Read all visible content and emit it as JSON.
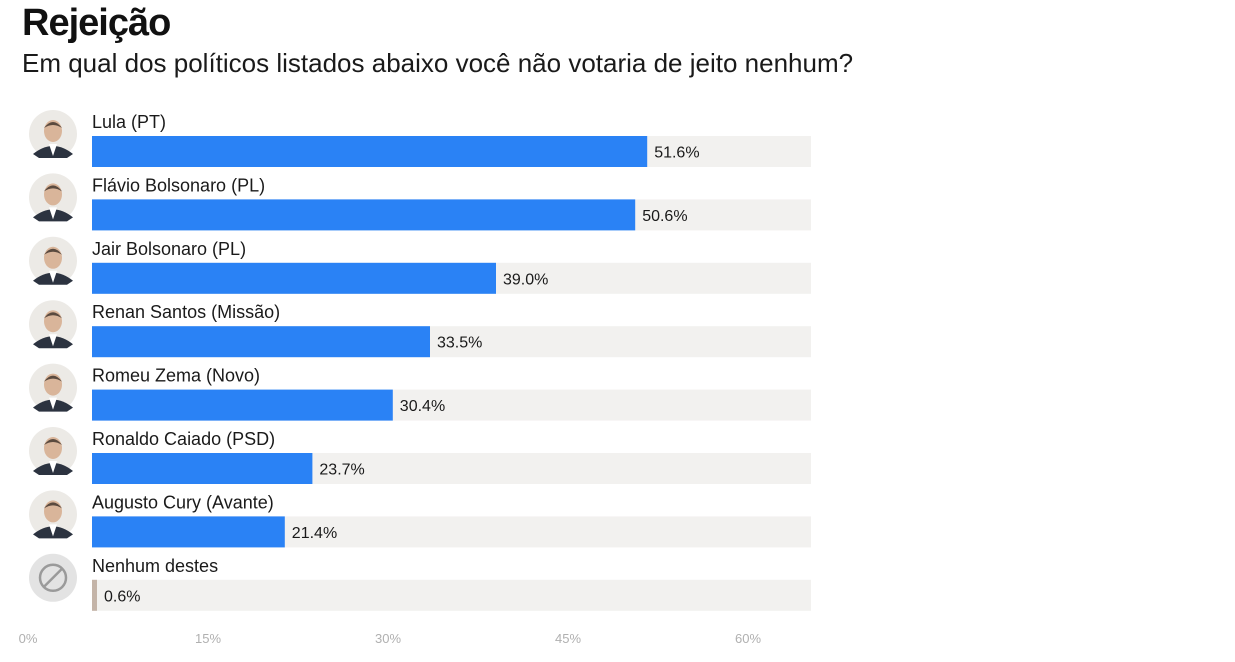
{
  "title": "Rejeição",
  "subtitle": "Em qual dos políticos listados abaixo você não votaria de jeito nenhum?",
  "colors": {
    "bar": "#2a82f5",
    "bar_none": "#c4b4a8",
    "track": "#f2f1ef",
    "tick": "#b0b0b0"
  },
  "chart_data": {
    "type": "bar",
    "orientation": "horizontal",
    "title": "Rejeição",
    "subtitle": "Em qual dos políticos listados abaixo você não votaria de jeito nenhum?",
    "categories": [
      "Lula (PT)",
      "Flávio Bolsonaro (PL)",
      "Jair Bolsonaro (PL)",
      "Renan Santos (Missão)",
      "Romeu Zema (Novo)",
      "Ronaldo Caiado (PSD)",
      "Augusto Cury (Avante)",
      "Nenhum destes"
    ],
    "values": [
      51.6,
      50.6,
      39.0,
      33.5,
      30.4,
      23.7,
      21.4,
      0.6
    ],
    "value_labels": [
      "51.6%",
      "50.6%",
      "39.0%",
      "33.5%",
      "30.4%",
      "23.7%",
      "21.4%",
      "0.6%"
    ],
    "icons": [
      "avatar-icon",
      "avatar-icon",
      "avatar-icon",
      "avatar-icon",
      "avatar-icon",
      "avatar-icon",
      "avatar-icon",
      "no-entry-icon"
    ],
    "xlim": [
      0,
      65
    ],
    "xticks": [
      0,
      15,
      30,
      45,
      60
    ],
    "xtick_labels": [
      "0%",
      "15%",
      "30%",
      "45%",
      "60%"
    ],
    "xlabel": "",
    "ylabel": "",
    "grid": false,
    "legend": "none"
  }
}
